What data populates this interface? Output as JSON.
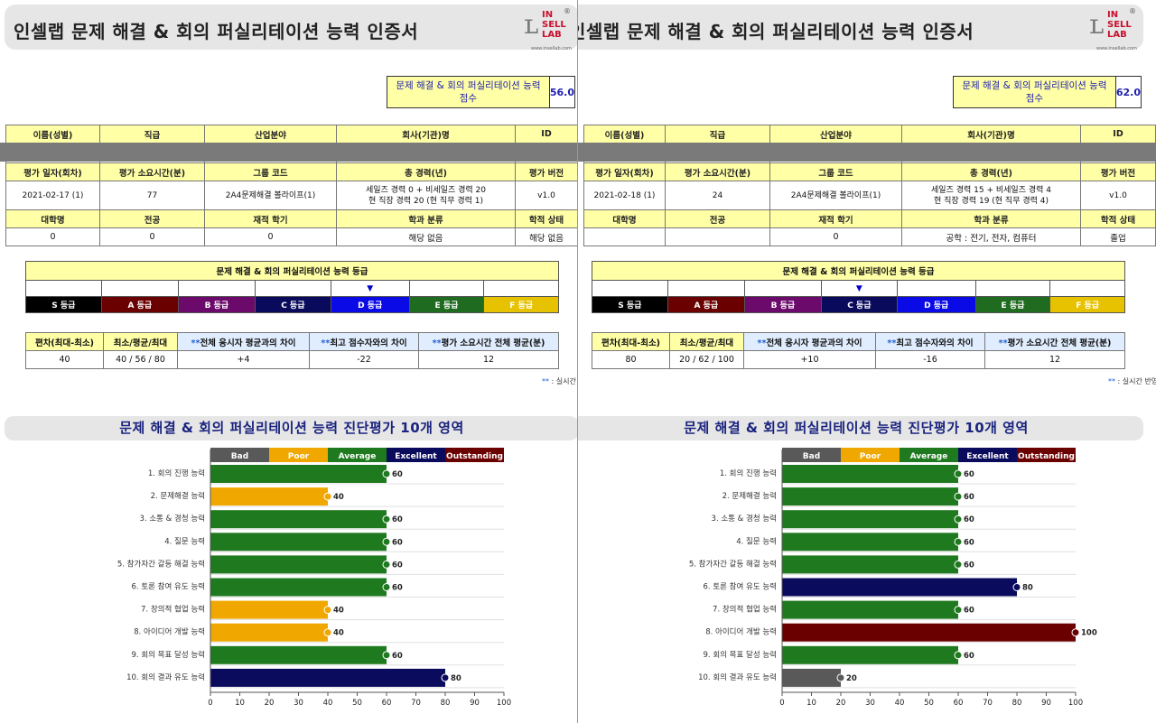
{
  "title": "인셀랩 문제 해결 & 회의 퍼실리테이션 능력 인증서",
  "logo": {
    "line1": "IN",
    "line2": "SELL",
    "line3": "LAB",
    "reg": "®",
    "url": "www.insellab.com"
  },
  "score_label": "문제 해결 & 회의 퍼실리테이션 능력 점수",
  "info_headers": {
    "row1": [
      "이름(성별)",
      "직급",
      "산업분야",
      "회사(기관)명",
      "ID"
    ],
    "row2": [
      "평가 일자(회차)",
      "평가 소요시간(분)",
      "그룹 코드",
      "총 경력(년)",
      "평가 버전"
    ],
    "row3": [
      "대학명",
      "전공",
      "재적 학기",
      "학과 분류",
      "학적 상태"
    ]
  },
  "grade_title": "문제 해결 & 회의 퍼실리테이션 능력 등급",
  "grade_marker": "▼",
  "grades": [
    "S 등급",
    "A 등급",
    "B 등급",
    "C 등급",
    "D 등급",
    "E 등급",
    "F 등급"
  ],
  "grade_colors": [
    "#000000",
    "#6b0000",
    "#6b0a6b",
    "#0a0a5c",
    "#0a0ae6",
    "#1f6b1f",
    "#e6c200"
  ],
  "stat_headers": [
    {
      "pre": "",
      "text": "편차(최대-최소)"
    },
    {
      "pre": "",
      "text": "최소/평균/최대"
    },
    {
      "pre": "**",
      "text": "전체 응시자 평균과의 차이"
    },
    {
      "pre": "**",
      "text": "최고 점수자와의 차이"
    },
    {
      "pre": "**",
      "text": "평가 소요시간 전체 평균(분)"
    }
  ],
  "note": {
    "pre": "**",
    "text": " : 실시간 반영"
  },
  "section_title": "문제 해결 & 회의 퍼실리테이션 능력 진단평가 10개 영역",
  "chart_data": {
    "type": "bar",
    "orientation": "horizontal",
    "legend": [
      {
        "label": "Bad",
        "color": "#595959"
      },
      {
        "label": "Poor",
        "color": "#f0a800"
      },
      {
        "label": "Average",
        "color": "#1f7a1f"
      },
      {
        "label": "Excellent",
        "color": "#0b0b5e"
      },
      {
        "label": "Outstanding",
        "color": "#6b0000"
      }
    ],
    "categories": [
      "1. 회의 진행 능력",
      "2. 문제해결 능력",
      "3. 소통 & 경청 능력",
      "4. 질문 능력",
      "5. 참가자간 갈등 해결 능력",
      "6. 토론 참여 유도 능력",
      "7. 창의적 협업 능력",
      "8. 아이디어 개발 능력",
      "9. 회의 목표 달성 능력",
      "10. 회의 결과 유도 능력"
    ],
    "xlim": [
      0,
      100
    ],
    "xticks": [
      0,
      10,
      20,
      30,
      40,
      50,
      60,
      70,
      80,
      90,
      100
    ],
    "series": [
      {
        "name": "2021-02-17",
        "values": [
          60,
          40,
          60,
          60,
          60,
          60,
          40,
          40,
          60,
          80
        ]
      },
      {
        "name": "2021-02-18",
        "values": [
          60,
          60,
          60,
          60,
          60,
          80,
          60,
          100,
          60,
          20
        ]
      }
    ]
  },
  "pages": [
    {
      "score": "56.0",
      "info": {
        "row1": [
          "",
          "",
          "",
          "",
          ""
        ],
        "row2": [
          "2021-02-17 (1)",
          "77",
          "2A4문제해결 볼라이프(1)",
          "세일즈 경력 0 + 비세일즈 경력 20",
          "v1.0"
        ],
        "row2_extra": "현 직장 경력 20 (현 직무 경력 1)",
        "row3": [
          "0",
          "0",
          "0",
          "해당 없음",
          "해당 없음"
        ]
      },
      "grade_index": 4,
      "stats": [
        "40",
        "40 / 56 / 80",
        "+4",
        "-22",
        "12"
      ]
    },
    {
      "score": "62.0",
      "info": {
        "row1": [
          "",
          "",
          "",
          "",
          ""
        ],
        "row2": [
          "2021-02-18 (1)",
          "24",
          "2A4문제해결 볼라이프(1)",
          "세일즈 경력 15 + 비세일즈 경력 4",
          "v1.0"
        ],
        "row2_extra": "현 직장 경력 19 (현 직무 경력 4)",
        "row3": [
          "",
          "",
          "0",
          "공학 : 전기, 전자, 컴퓨터",
          "졸업"
        ]
      },
      "grade_index": 3,
      "stats": [
        "80",
        "20 / 62 / 100",
        "+10",
        "-16",
        "12"
      ]
    }
  ]
}
